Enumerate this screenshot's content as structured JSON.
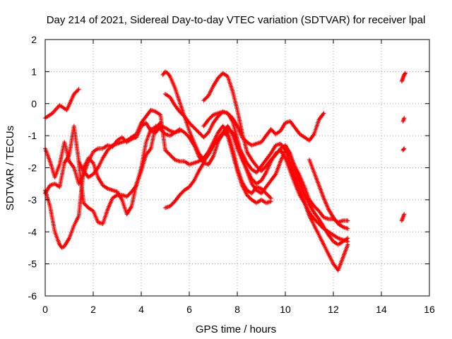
{
  "chart_data": {
    "type": "scatter",
    "title": "Day 214 of 2021, Sidereal Day-to-day VTEC variation (SDTVAR) for receiver lpal",
    "xlabel": "GPS time / hours",
    "ylabel": "SDTVAR / TECUs",
    "xlim": [
      0,
      16
    ],
    "ylim": [
      -6,
      2
    ],
    "xticks": [
      "0",
      "2",
      "4",
      "6",
      "8",
      "10",
      "12",
      "14",
      "16"
    ],
    "yticks": [
      "-6",
      "-5",
      "-4",
      "-3",
      "-2",
      "-1",
      "0",
      "1",
      "2"
    ],
    "grid": true,
    "marker": "plus",
    "color": "#ff0000",
    "series": [
      {
        "x": [
          0,
          0.3,
          0.6,
          0.9,
          1.2,
          1.4
        ],
        "y": [
          -0.45,
          -0.3,
          -0.05,
          -0.2,
          0.3,
          0.45
        ]
      },
      {
        "x": [
          0,
          0.2,
          0.4,
          0.6,
          0.8,
          1.0,
          1.2,
          1.4,
          1.6,
          1.8,
          2.0,
          2.2,
          2.4,
          2.6,
          2.8,
          3.0,
          3.2,
          3.4,
          3.6,
          3.8,
          4.0,
          4.2,
          4.4,
          4.6,
          4.8,
          5.0,
          5.2,
          5.4,
          5.6
        ],
        "y": [
          -1.4,
          -1.8,
          -2.3,
          -1.9,
          -1.2,
          -1.8,
          -2.0,
          -2.5,
          -2.2,
          -1.8,
          -1.5,
          -1.4,
          -1.4,
          -1.3,
          -1.35,
          -1.15,
          -1.05,
          -1.2,
          -1.1,
          -1.05,
          -0.7,
          -0.6,
          -0.85,
          -0.9,
          -0.7,
          -0.75,
          -0.85,
          -0.9,
          -0.85
        ]
      },
      {
        "x": [
          0,
          0.2,
          0.4,
          0.6,
          0.8,
          1.0,
          1.2,
          1.4,
          1.6,
          1.8,
          2.0,
          2.2,
          2.4,
          2.6,
          2.8,
          3.0,
          3.2,
          3.4,
          3.6,
          3.8,
          4.0,
          4.2,
          4.4,
          4.6,
          4.8,
          5.0,
          5.2,
          5.4,
          5.6,
          5.8,
          6.0,
          6.2,
          6.4,
          6.6,
          6.8,
          7.0,
          7.2,
          7.4,
          7.6,
          7.8,
          8.0,
          8.2,
          8.4,
          8.6,
          8.8,
          9.0,
          9.2,
          9.4
        ],
        "y": [
          -2.8,
          -2.55,
          -2.5,
          -2.6,
          -1.85,
          -1.6,
          -0.7,
          -1.8,
          -2.1,
          -2.3,
          -2.2,
          -2.0,
          -1.7,
          -1.45,
          -1.3,
          -1.25,
          -1.2,
          -1.15,
          -1.05,
          -0.95,
          -0.6,
          -0.4,
          -0.2,
          -0.25,
          -0.35,
          -1.45,
          -1.6,
          -1.75,
          -1.8,
          -1.8,
          -1.9,
          -1.85,
          -1.8,
          -1.7,
          -1.5,
          -1.2,
          -0.9,
          -0.7,
          -0.9,
          -1.4,
          -2.0,
          -2.45,
          -2.7,
          -2.8,
          -2.6,
          -2.65,
          -2.8,
          -2.95
        ]
      },
      {
        "x": [
          0,
          0.2,
          0.4,
          0.6,
          0.7,
          0.8,
          1.0,
          1.2,
          1.4,
          1.6,
          1.8,
          2.0,
          2.2,
          2.4,
          2.6,
          2.8,
          3.0,
          3.2,
          3.4,
          3.6,
          3.8,
          4.0,
          4.2,
          4.4,
          4.6,
          4.8,
          5.0,
          5.2,
          5.4,
          5.6,
          5.8,
          6.0,
          6.2,
          6.4,
          6.6,
          6.8,
          7.0,
          7.2,
          7.4,
          7.6,
          7.8,
          8.0,
          8.2,
          8.4,
          8.6,
          8.8,
          9.0,
          9.2,
          9.4
        ],
        "y": [
          -2.7,
          -3.2,
          -4.0,
          -4.4,
          -4.5,
          -4.45,
          -4.2,
          -3.8,
          -3.5,
          -2.0,
          -1.7,
          -1.85,
          -2.3,
          -2.55,
          -2.65,
          -2.7,
          -2.75,
          -3.0,
          -3.45,
          -3.2,
          -2.5,
          -2.1,
          -1.6,
          -1.4,
          -0.7,
          -0.8,
          -0.95,
          -1.0,
          -0.9,
          -0.8,
          -0.9,
          -1.05,
          -1.3,
          -1.65,
          -1.85,
          -1.9,
          -1.65,
          -1.2,
          -0.9,
          -1.0,
          -1.55,
          -2.1,
          -2.55,
          -2.85,
          -3.0,
          -3.1,
          -3.0,
          -3.1,
          -3.05
        ]
      },
      {
        "x": [
          1.4,
          1.6,
          1.8,
          2.0,
          2.2,
          2.4,
          2.6,
          2.8,
          3.0,
          3.2,
          3.4,
          3.6,
          3.8,
          4.0,
          4.2,
          4.4,
          4.6,
          4.8
        ],
        "y": [
          -1.85,
          -3.1,
          -3.25,
          -3.35,
          -3.7,
          -3.75,
          -3.3,
          -2.95,
          -2.85,
          -2.85,
          -2.9,
          -2.75,
          -2.55,
          -2.0,
          -1.2,
          -0.8,
          -0.75,
          -0.6
        ]
      },
      {
        "x": [
          5.0,
          5.2,
          5.4,
          5.6,
          5.8,
          6.0,
          6.2,
          6.4,
          6.6,
          6.8,
          7.0,
          7.2,
          7.4,
          7.6,
          7.8,
          8.0,
          8.2,
          8.4,
          8.6,
          8.8,
          9.0,
          9.2,
          9.4,
          9.6,
          9.8,
          10.0,
          10.2,
          10.4,
          10.6,
          10.8,
          11.0,
          11.2,
          11.4,
          11.6,
          11.8,
          12.0,
          12.2,
          12.4,
          12.6
        ],
        "y": [
          0.3,
          0.2,
          -0.05,
          -0.25,
          -0.4,
          -0.6,
          -0.75,
          -0.9,
          -1.05,
          -0.9,
          -0.6,
          -0.4,
          -0.25,
          -0.3,
          -0.55,
          -1.1,
          -1.7,
          -2.1,
          -2.5,
          -2.7,
          -2.8,
          -2.6,
          -2.4,
          -2.2,
          -1.8,
          -1.45,
          -1.6,
          -1.95,
          -2.25,
          -2.6,
          -3.0,
          -3.2,
          -3.35,
          -3.55,
          -3.6,
          -3.6,
          -3.7,
          -3.65,
          -3.65
        ]
      },
      {
        "x": [
          5.0,
          5.2,
          5.4,
          5.6,
          5.8,
          6.0,
          6.2,
          6.4,
          6.6,
          6.8,
          7.0,
          7.2,
          7.4,
          7.6,
          7.8,
          8.0,
          8.2,
          8.4,
          8.6,
          8.8,
          9.0,
          9.2,
          9.4,
          9.6,
          9.8,
          10.0,
          10.2,
          10.4,
          10.6,
          10.8,
          11.0,
          11.2,
          11.4,
          11.6,
          11.8,
          12.0,
          12.2,
          12.4,
          12.6
        ],
        "y": [
          -3.25,
          -3.2,
          -3.05,
          -2.85,
          -2.7,
          -2.6,
          -2.4,
          -2.1,
          -1.85,
          -1.55,
          -1.3,
          -1.1,
          -0.9,
          -0.7,
          -0.95,
          -1.4,
          -1.75,
          -2.05,
          -2.35,
          -2.5,
          -2.4,
          -2.15,
          -1.8,
          -1.55,
          -1.45,
          -1.7,
          -2.1,
          -2.5,
          -2.85,
          -3.1,
          -3.4,
          -3.6,
          -3.75,
          -3.9,
          -4.0,
          -4.1,
          -4.2,
          -4.25,
          -4.3
        ]
      },
      {
        "x": [
          4.9,
          5.0,
          5.1,
          5.2,
          5.4,
          5.6,
          5.8,
          6.0,
          6.2,
          6.4,
          6.6,
          6.8,
          7.0,
          7.2,
          7.4,
          7.6,
          7.8,
          8.0,
          8.2,
          8.4,
          8.6,
          8.8,
          9.0,
          9.2,
          9.4,
          9.6,
          9.8,
          10.0,
          10.2,
          10.4,
          10.6,
          10.8,
          11.0,
          11.2,
          11.4,
          11.6,
          11.8,
          12.0,
          12.2,
          12.4,
          12.6
        ],
        "y": [
          0.9,
          1.0,
          0.95,
          0.85,
          0.5,
          0.05,
          -0.4,
          -0.85,
          -1.2,
          -1.55,
          -1.75,
          -1.6,
          -1.3,
          -1.15,
          -0.95,
          -0.75,
          -0.9,
          -1.25,
          -1.55,
          -1.85,
          -2.05,
          -2.15,
          -1.95,
          -1.75,
          -1.55,
          -1.3,
          -1.25,
          -1.45,
          -1.85,
          -2.3,
          -2.7,
          -3.1,
          -3.5,
          -3.8,
          -4.1,
          -4.4,
          -4.7,
          -5.0,
          -5.2,
          -4.8,
          -4.4
        ]
      },
      {
        "x": [
          6.6,
          6.8,
          7.0,
          7.2,
          7.4,
          7.6,
          7.8,
          8.0,
          8.2,
          8.4,
          8.6,
          8.8,
          9.0,
          9.2,
          9.4,
          9.6,
          9.8,
          10.0,
          10.2,
          10.4,
          10.6,
          10.8,
          11.0,
          11.2,
          11.4,
          11.6,
          11.8,
          12.0,
          12.2,
          12.4,
          12.6
        ],
        "y": [
          0.1,
          0.25,
          0.55,
          0.8,
          0.95,
          0.85,
          0.4,
          -0.2,
          -0.9,
          -1.5,
          -1.75,
          -1.95,
          -2.1,
          -1.95,
          -1.75,
          -1.6,
          -1.4,
          -1.3,
          -1.55,
          -2.05,
          -2.45,
          -2.85,
          -3.15,
          -3.4,
          -3.6,
          -3.85,
          -4.1,
          -4.3,
          -4.4,
          -4.3,
          -4.2
        ]
      },
      {
        "x": [
          6.6,
          6.8,
          7.0,
          7.2,
          7.4,
          7.6,
          7.8,
          8.0,
          8.2,
          8.4,
          8.6,
          8.8,
          9.0,
          9.2,
          9.4,
          9.6,
          9.8,
          10.0,
          10.2,
          10.4,
          10.6,
          10.8,
          11.0,
          11.2,
          11.4,
          11.6
        ],
        "y": [
          -0.7,
          -0.5,
          -0.35,
          -0.3,
          -0.25,
          -0.3,
          -0.45,
          -0.7,
          -1.05,
          -1.2,
          -1.3,
          -1.25,
          -1.2,
          -1.0,
          -0.8,
          -0.95,
          -0.85,
          -0.6,
          -0.55,
          -0.75,
          -0.95,
          -1.05,
          -1.15,
          -0.95,
          -0.5,
          -0.3
        ]
      },
      {
        "x": [
          11.0,
          11.2,
          11.4,
          11.6,
          11.8,
          12.0,
          12.2,
          12.4,
          12.6
        ],
        "y": [
          -1.75,
          -2.15,
          -2.55,
          -2.95,
          -3.3,
          -3.55,
          -3.75,
          -3.85,
          -3.9
        ]
      },
      {
        "x": [
          14.85,
          14.9,
          14.95,
          15.0
        ],
        "y": [
          0.7,
          0.8,
          0.9,
          0.95
        ]
      },
      {
        "x": [
          14.9,
          14.95
        ],
        "y": [
          -0.55,
          -0.45
        ]
      },
      {
        "x": [
          14.9,
          14.95
        ],
        "y": [
          -1.45,
          -1.4
        ]
      },
      {
        "x": [
          14.85,
          14.9,
          14.95
        ],
        "y": [
          -3.65,
          -3.55,
          -3.45
        ]
      }
    ]
  }
}
